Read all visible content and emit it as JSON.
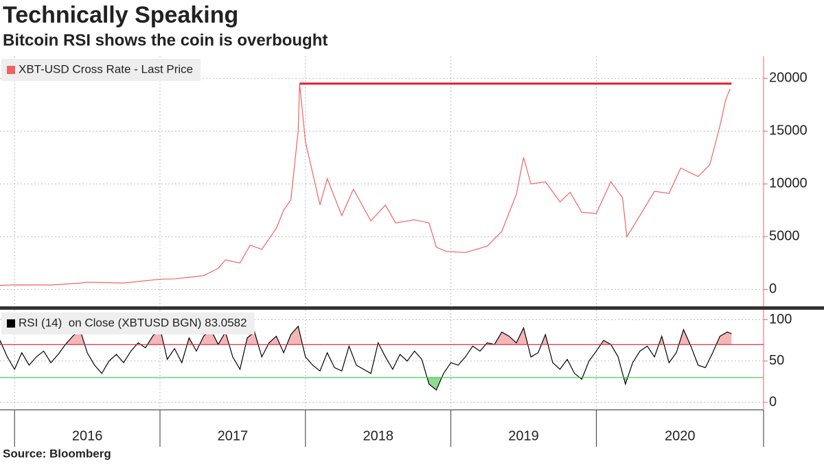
{
  "title": "Technically Speaking",
  "subtitle": "Bitcoin RSI shows the coin is overbought",
  "source": "Source: Bloomberg",
  "chart_data": [
    {
      "type": "line",
      "x": [
        2015.9,
        2016.0,
        2016.25,
        2016.45,
        2016.5,
        2016.75,
        2017.0,
        2017.1,
        2017.2,
        2017.3,
        2017.4,
        2017.45,
        2017.55,
        2017.62,
        2017.7,
        2017.8,
        2017.85,
        2017.9,
        2017.95,
        2017.96,
        2018.0,
        2018.05,
        2018.1,
        2018.15,
        2018.25,
        2018.33,
        2018.45,
        2018.55,
        2018.62,
        2018.75,
        2018.85,
        2018.9,
        2018.97,
        2019.1,
        2019.25,
        2019.35,
        2019.45,
        2019.5,
        2019.55,
        2019.65,
        2019.75,
        2019.82,
        2019.9,
        2020.0,
        2020.1,
        2020.18,
        2020.21,
        2020.3,
        2020.4,
        2020.5,
        2020.58,
        2020.7,
        2020.78,
        2020.85,
        2020.89,
        2020.92
      ],
      "series": [
        {
          "name": "XBT-USD Cross Rate - Last Price",
          "color": "#f06262",
          "values": [
            380,
            430,
            420,
            600,
            680,
            610,
            970,
            1000,
            1150,
            1300,
            2000,
            2800,
            2500,
            4200,
            3800,
            5800,
            7500,
            8500,
            15000,
            19500,
            14000,
            11000,
            8000,
            10500,
            7000,
            9500,
            6500,
            8000,
            6300,
            6600,
            6300,
            4000,
            3600,
            3500,
            4100,
            5500,
            9000,
            12500,
            10000,
            10200,
            8300,
            9200,
            7300,
            7200,
            10200,
            8700,
            5000,
            7000,
            9300,
            9100,
            11500,
            10700,
            11800,
            15500,
            18000,
            19000
          ]
        }
      ],
      "reference_lines": [
        {
          "value": 19500,
          "x": [
            2017.96,
            2020.93
          ],
          "color": "#e8192c"
        }
      ],
      "xlim": [
        2015.9,
        2021.15
      ],
      "ylim": [
        -1600,
        22100
      ],
      "yticks": [
        0,
        5000,
        10000,
        15000,
        20000
      ],
      "grid": true
    },
    {
      "type": "line",
      "x": [
        2015.9,
        2015.95,
        2016.0,
        2016.05,
        2016.1,
        2016.15,
        2016.2,
        2016.25,
        2016.3,
        2016.35,
        2016.4,
        2016.45,
        2016.5,
        2016.55,
        2016.6,
        2016.65,
        2016.7,
        2016.75,
        2016.8,
        2016.85,
        2016.9,
        2016.95,
        2017.0,
        2017.05,
        2017.1,
        2017.15,
        2017.2,
        2017.25,
        2017.3,
        2017.35,
        2017.4,
        2017.45,
        2017.5,
        2017.55,
        2017.6,
        2017.65,
        2017.7,
        2017.75,
        2017.8,
        2017.85,
        2017.9,
        2017.95,
        2018.0,
        2018.05,
        2018.1,
        2018.15,
        2018.2,
        2018.25,
        2018.3,
        2018.35,
        2018.4,
        2018.45,
        2018.5,
        2018.55,
        2018.6,
        2018.65,
        2018.7,
        2018.75,
        2018.8,
        2018.85,
        2018.9,
        2018.95,
        2019.0,
        2019.05,
        2019.1,
        2019.15,
        2019.2,
        2019.25,
        2019.3,
        2019.35,
        2019.4,
        2019.45,
        2019.5,
        2019.55,
        2019.6,
        2019.65,
        2019.7,
        2019.75,
        2019.8,
        2019.85,
        2019.9,
        2019.95,
        2020.0,
        2020.05,
        2020.1,
        2020.15,
        2020.2,
        2020.25,
        2020.3,
        2020.35,
        2020.4,
        2020.45,
        2020.5,
        2020.55,
        2020.6,
        2020.65,
        2020.7,
        2020.75,
        2020.8,
        2020.85,
        2020.9,
        2020.93
      ],
      "series": [
        {
          "name": "RSI (14)  on Close (XBTUSD BGN) 83.0582",
          "color": "#000000",
          "values": [
            75,
            55,
            40,
            60,
            45,
            55,
            62,
            48,
            58,
            70,
            80,
            88,
            60,
            45,
            35,
            50,
            58,
            48,
            62,
            72,
            66,
            80,
            90,
            52,
            65,
            48,
            78,
            62,
            80,
            88,
            70,
            85,
            55,
            40,
            78,
            85,
            55,
            72,
            80,
            60,
            82,
            92,
            55,
            45,
            38,
            60,
            42,
            38,
            68,
            45,
            40,
            35,
            72,
            55,
            40,
            58,
            50,
            62,
            52,
            22,
            15,
            35,
            48,
            45,
            55,
            68,
            62,
            72,
            70,
            85,
            80,
            72,
            90,
            55,
            60,
            82,
            48,
            40,
            52,
            35,
            28,
            50,
            62,
            75,
            70,
            55,
            22,
            48,
            62,
            68,
            55,
            80,
            48,
            60,
            88,
            68,
            45,
            42,
            60,
            80,
            85,
            83.0582
          ]
        }
      ],
      "reference_lines": [
        {
          "value": 70,
          "color": "#e8192c",
          "shade": "above",
          "shade_color": "#f4b6b6"
        },
        {
          "value": 30,
          "color": "#2ecc40",
          "shade": "below",
          "shade_color": "#8fdc8f"
        }
      ],
      "xlim": [
        2015.9,
        2021.15
      ],
      "ylim": [
        -9,
        112
      ],
      "yticks": [
        0,
        50,
        100
      ],
      "xticks": [
        2016,
        2017,
        2018,
        2019,
        2020
      ],
      "grid": true
    }
  ]
}
